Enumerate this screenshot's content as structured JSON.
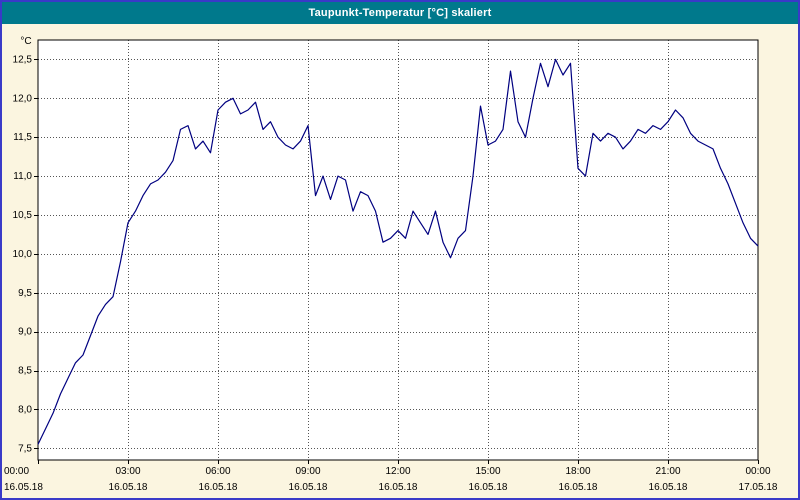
{
  "window": {
    "title": "Taupunkt-Temperatur [°C] skaliert"
  },
  "colors": {
    "title_bar_bg": "#00798c",
    "title_text": "#ffffff",
    "page_bg": "#fbf5e0",
    "plot_bg": "#ffffff",
    "outer_border": "#3a3ac8",
    "grid": "#555555",
    "line": "#000080"
  },
  "chart_data": {
    "type": "line",
    "title": "Taupunkt-Temperatur [°C] skaliert",
    "xlabel": "",
    "ylabel": "°C",
    "xlim": [
      0,
      24
    ],
    "ylim": [
      7.35,
      12.75
    ],
    "grid": true,
    "legend": "none",
    "line_color": "#000080",
    "y_ticks": [
      {
        "v": 7.5,
        "label": "7,5"
      },
      {
        "v": 8.0,
        "label": "8,0"
      },
      {
        "v": 8.5,
        "label": "8,5"
      },
      {
        "v": 9.0,
        "label": "9,0"
      },
      {
        "v": 9.5,
        "label": "9,5"
      },
      {
        "v": 10.0,
        "label": "10,0"
      },
      {
        "v": 10.5,
        "label": "10,5"
      },
      {
        "v": 11.0,
        "label": "11,0"
      },
      {
        "v": 11.5,
        "label": "11,5"
      },
      {
        "v": 12.0,
        "label": "12,0"
      },
      {
        "v": 12.5,
        "label": "12,5"
      }
    ],
    "x_ticks": [
      {
        "h": 0,
        "time": "00:00",
        "date": "16.05.18"
      },
      {
        "h": 3,
        "time": "03:00",
        "date": "16.05.18"
      },
      {
        "h": 6,
        "time": "06:00",
        "date": "16.05.18"
      },
      {
        "h": 9,
        "time": "09:00",
        "date": "16.05.18"
      },
      {
        "h": 12,
        "time": "12:00",
        "date": "16.05.18"
      },
      {
        "h": 15,
        "time": "15:00",
        "date": "16.05.18"
      },
      {
        "h": 18,
        "time": "18:00",
        "date": "16.05.18"
      },
      {
        "h": 21,
        "time": "21:00",
        "date": "16.05.18"
      },
      {
        "h": 24,
        "time": "00:00",
        "date": "17.05.18"
      }
    ],
    "series": [
      {
        "name": "Taupunkt-Temperatur",
        "points": [
          [
            0,
            7.55
          ],
          [
            0.25,
            7.75
          ],
          [
            0.5,
            7.95
          ],
          [
            0.75,
            8.2
          ],
          [
            1,
            8.4
          ],
          [
            1.25,
            8.6
          ],
          [
            1.5,
            8.7
          ],
          [
            1.75,
            8.95
          ],
          [
            2,
            9.2
          ],
          [
            2.25,
            9.35
          ],
          [
            2.5,
            9.45
          ],
          [
            2.75,
            9.9
          ],
          [
            3,
            10.4
          ],
          [
            3.25,
            10.55
          ],
          [
            3.5,
            10.75
          ],
          [
            3.75,
            10.9
          ],
          [
            4,
            10.95
          ],
          [
            4.25,
            11.05
          ],
          [
            4.5,
            11.2
          ],
          [
            4.75,
            11.6
          ],
          [
            5,
            11.65
          ],
          [
            5.25,
            11.35
          ],
          [
            5.5,
            11.45
          ],
          [
            5.75,
            11.3
          ],
          [
            6,
            11.85
          ],
          [
            6.25,
            11.95
          ],
          [
            6.5,
            12.0
          ],
          [
            6.75,
            11.8
          ],
          [
            7,
            11.85
          ],
          [
            7.25,
            11.95
          ],
          [
            7.5,
            11.6
          ],
          [
            7.75,
            11.7
          ],
          [
            8,
            11.5
          ],
          [
            8.25,
            11.4
          ],
          [
            8.5,
            11.35
          ],
          [
            8.75,
            11.45
          ],
          [
            9,
            11.65
          ],
          [
            9.25,
            10.75
          ],
          [
            9.5,
            11.0
          ],
          [
            9.75,
            10.7
          ],
          [
            10,
            11.0
          ],
          [
            10.25,
            10.95
          ],
          [
            10.5,
            10.55
          ],
          [
            10.75,
            10.8
          ],
          [
            11,
            10.75
          ],
          [
            11.25,
            10.55
          ],
          [
            11.5,
            10.15
          ],
          [
            11.75,
            10.2
          ],
          [
            12,
            10.3
          ],
          [
            12.25,
            10.2
          ],
          [
            12.5,
            10.55
          ],
          [
            12.75,
            10.4
          ],
          [
            13,
            10.25
          ],
          [
            13.25,
            10.55
          ],
          [
            13.5,
            10.15
          ],
          [
            13.75,
            9.95
          ],
          [
            14,
            10.2
          ],
          [
            14.25,
            10.3
          ],
          [
            14.5,
            11.0
          ],
          [
            14.75,
            11.9
          ],
          [
            15,
            11.4
          ],
          [
            15.25,
            11.45
          ],
          [
            15.5,
            11.6
          ],
          [
            15.75,
            12.35
          ],
          [
            16,
            11.7
          ],
          [
            16.25,
            11.5
          ],
          [
            16.5,
            12.0
          ],
          [
            16.75,
            12.45
          ],
          [
            17,
            12.15
          ],
          [
            17.25,
            12.5
          ],
          [
            17.5,
            12.3
          ],
          [
            17.75,
            12.45
          ],
          [
            18,
            11.1
          ],
          [
            18.25,
            11.0
          ],
          [
            18.5,
            11.55
          ],
          [
            18.75,
            11.45
          ],
          [
            19,
            11.55
          ],
          [
            19.25,
            11.5
          ],
          [
            19.5,
            11.35
          ],
          [
            19.75,
            11.45
          ],
          [
            20,
            11.6
          ],
          [
            20.25,
            11.55
          ],
          [
            20.5,
            11.65
          ],
          [
            20.75,
            11.6
          ],
          [
            21,
            11.7
          ],
          [
            21.25,
            11.85
          ],
          [
            21.5,
            11.75
          ],
          [
            21.75,
            11.55
          ],
          [
            22,
            11.45
          ],
          [
            22.25,
            11.4
          ],
          [
            22.5,
            11.35
          ],
          [
            22.75,
            11.1
          ],
          [
            23,
            10.9
          ],
          [
            23.25,
            10.65
          ],
          [
            23.5,
            10.4
          ],
          [
            23.75,
            10.2
          ],
          [
            24,
            10.1
          ]
        ]
      }
    ]
  }
}
